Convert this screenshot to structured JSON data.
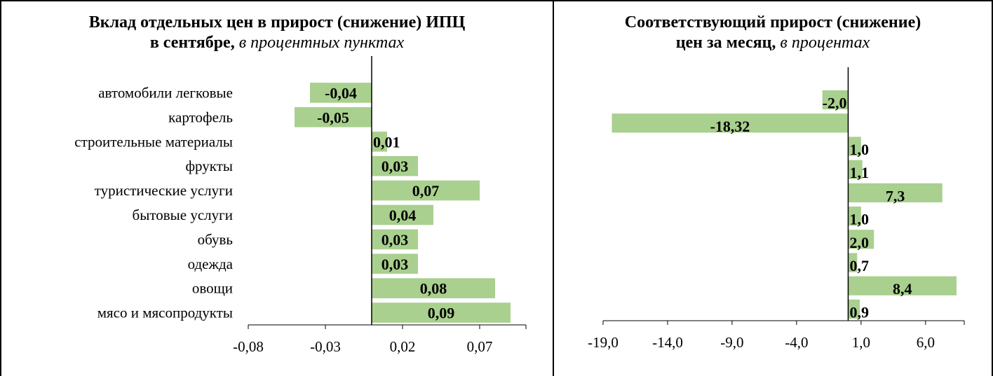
{
  "colors": {
    "bar": "#a9d08e",
    "axis": "#000000",
    "text": "#000000"
  },
  "panel_left": {
    "title_bold_line1": "Вклад отдельных цен в прирост (снижение) ИПЦ",
    "title_bold_line2": "в сентябре,",
    "title_italic": "в процентных пунктах"
  },
  "panel_right": {
    "title_bold_line1": "Соответствующий прирост (снижение)",
    "title_bold_line2": "цен за месяц,",
    "title_italic": "в процентах"
  },
  "chart_data": [
    {
      "type": "bar",
      "orientation": "horizontal",
      "categories": [
        "автомобили легковые",
        "картофель",
        "строительные материалы",
        "фрукты ",
        "туристические услуги",
        "бытовые услуги",
        "обувь",
        "одежда",
        "овощи",
        "мясо и мясопродукты"
      ],
      "values": [
        -0.04,
        -0.05,
        0.01,
        0.03,
        0.07,
        0.04,
        0.03,
        0.03,
        0.08,
        0.09
      ],
      "value_labels": [
        "-0,04",
        "-0,05",
        "0,01",
        "0,03",
        "0,07",
        "0,04",
        "0,03",
        "0,03",
        "0,08",
        "0,09"
      ],
      "xlim": [
        -0.08,
        0.1
      ],
      "xticks": [
        -0.08,
        -0.03,
        0.02,
        0.07
      ],
      "xtick_labels": [
        "-0,08",
        "-0,03",
        "0,02",
        "0,07"
      ],
      "grid": false
    },
    {
      "type": "bar",
      "orientation": "horizontal",
      "values": [
        -2.0,
        -18.32,
        1.0,
        1.1,
        7.3,
        1.0,
        2.0,
        0.7,
        8.4,
        0.9
      ],
      "value_labels": [
        "-2,0",
        "-18,32",
        "1,0",
        "1,1",
        "7,3",
        "1,0",
        "2,0",
        "0,7",
        "8,4",
        "0,9"
      ],
      "xlim": [
        -19.0,
        9.0
      ],
      "xticks": [
        -19.0,
        -14.0,
        -9.0,
        -4.0,
        1.0,
        6.0
      ],
      "xtick_labels": [
        "-19,0",
        "-14,0",
        "-9,0",
        "-4,0",
        "1,0",
        "6,0"
      ],
      "grid": false
    }
  ]
}
